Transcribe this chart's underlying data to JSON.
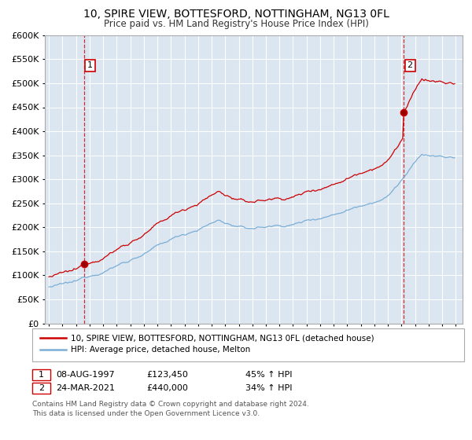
{
  "title1": "10, SPIRE VIEW, BOTTESFORD, NOTTINGHAM, NG13 0FL",
  "title2": "Price paid vs. HM Land Registry's House Price Index (HPI)",
  "legend_line1": "10, SPIRE VIEW, BOTTESFORD, NOTTINGHAM, NG13 0FL (detached house)",
  "legend_line2": "HPI: Average price, detached house, Melton",
  "marker1_date": "08-AUG-1997",
  "marker1_price": 123450,
  "marker1_label": "45% ↑ HPI",
  "marker2_date": "24-MAR-2021",
  "marker2_price": 440000,
  "marker2_label": "34% ↑ HPI",
  "footnote1": "Contains HM Land Registry data © Crown copyright and database right 2024.",
  "footnote2": "This data is licensed under the Open Government Licence v3.0.",
  "red_color": "#cc0000",
  "blue_color": "#7aaed6",
  "bg_color": "#dce6f1",
  "grid_color": "#ffffff",
  "marker1_x": 1997.583,
  "marker2_x": 2021.208
}
